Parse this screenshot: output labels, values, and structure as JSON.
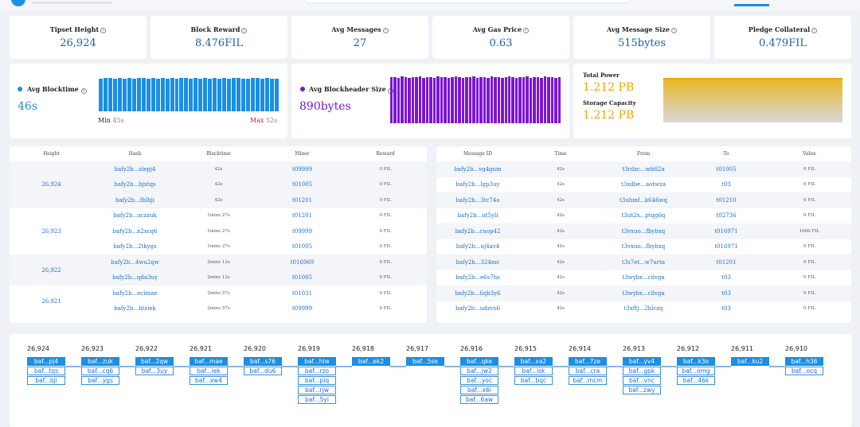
{
  "stats": [
    {
      "title": "Tipset Height",
      "value": "26,924"
    },
    {
      "title": "Block Reward",
      "value": "8.476FIL"
    },
    {
      "title": "Avg Messages",
      "value": "27"
    },
    {
      "title": "Avg Gas Price",
      "value": "0.63"
    },
    {
      "title": "Avg Message Size",
      "value": "515bytes"
    },
    {
      "title": "Pledge Collateral",
      "value": "0.479FIL"
    }
  ],
  "blocktime": {
    "title": "Avg Blocktime",
    "value": "46s",
    "min_label": "Min",
    "min_value": "45s",
    "max_label": "Max",
    "max_value": "52s",
    "color": "#1a8fe3",
    "levels": [
      0.86,
      0.88,
      0.87,
      0.86,
      0.88,
      0.85,
      0.87,
      0.86,
      0.88,
      0.87,
      0.86,
      0.87,
      0.85,
      0.88,
      0.86,
      0.87,
      0.86,
      0.88,
      0.87,
      0.86,
      0.88,
      0.86,
      0.87,
      0.85,
      0.88,
      0.86,
      0.87,
      0.86,
      0.88,
      0.87,
      0.86,
      0.85,
      0.87,
      0.88,
      0.86,
      0.87,
      0.86,
      0.85
    ]
  },
  "blockheader": {
    "title": "Avg Blockheader Size",
    "value": "890bytes",
    "color": "#7b16d4",
    "levels": [
      0.96,
      0.97,
      0.95,
      0.98,
      0.96,
      0.95,
      0.97,
      0.96,
      0.98,
      0.95,
      0.97,
      0.96,
      0.95,
      0.98,
      0.96,
      0.97,
      0.95,
      0.96,
      0.98,
      0.97,
      0.95,
      0.96,
      0.97,
      0.98,
      0.95,
      0.96,
      0.97,
      0.95,
      0.98,
      0.96,
      0.97,
      0.95,
      0.96,
      0.98,
      0.97,
      0.95,
      0.96,
      0.97,
      0.98,
      0.95,
      0.96,
      0.97,
      0.95,
      0.98,
      0.96,
      0.97,
      0.95,
      0.96
    ]
  },
  "power": {
    "total_label": "Total Power",
    "total_value": "1.212 PB",
    "storage_label": "Storage Capacity",
    "storage_value": "1.212 PB",
    "value_color": "#f0a800"
  },
  "blocks_table": {
    "headers": [
      "Height",
      "Hash",
      "Blocktime",
      "Miner",
      "Reward"
    ],
    "groups": [
      {
        "height": "26,924",
        "rows": [
          {
            "hash": "bafy2b...zlepj4",
            "time": "42s",
            "miner": "t09999",
            "reward": "0 FIL"
          },
          {
            "hash": "bafy2b...bjxtqs",
            "time": "42s",
            "miner": "t01005",
            "reward": "0 FIL"
          },
          {
            "hash": "bafy2b...fblbji",
            "time": "42s",
            "miner": "t01201",
            "reward": "0 FIL"
          }
        ]
      },
      {
        "height": "26,923",
        "rows": [
          {
            "hash": "bafy2b...zczzuk",
            "time": "1mins 27s",
            "miner": "t01201",
            "reward": "0 FIL"
          },
          {
            "hash": "bafy2b...x2xcq6",
            "time": "1mins 27s",
            "miner": "t09999",
            "reward": "0 FIL"
          },
          {
            "hash": "bafy2b...2tkygs",
            "time": "1mins 27s",
            "miner": "t01005",
            "reward": "0 FIL"
          }
        ]
      },
      {
        "height": "26,922",
        "rows": [
          {
            "hash": "bafy2b...4wu2qw",
            "time": "2mins 12s",
            "miner": "t016969",
            "reward": "0 FIL"
          },
          {
            "hash": "bafy2b...qda3uy",
            "time": "2mins 12s",
            "miner": "t01005",
            "reward": "0 FIL"
          }
        ]
      },
      {
        "height": "26,921",
        "rows": [
          {
            "hash": "bafy2b...ecimae",
            "time": "2mins 57s",
            "miner": "t01031",
            "reward": "0 FIL"
          },
          {
            "hash": "bafy2b...htziek",
            "time": "2mins 57s",
            "miner": "t09999",
            "reward": "0 FIL"
          }
        ]
      }
    ]
  },
  "messages_table": {
    "headers": [
      "Message ID",
      "Time",
      "From",
      "To",
      "Value"
    ],
    "rows": [
      {
        "id": "bafy2b...vg4gum",
        "time": "42s",
        "from": "t3rdzc...wbtl2a",
        "to": "t01005",
        "value": "0 FIL"
      },
      {
        "id": "bafy2b...lgp3uy",
        "time": "42s",
        "from": "t3xdbe...aotwza",
        "to": "t03",
        "value": "0 FIL"
      },
      {
        "id": "bafy2b...3tc74o",
        "time": "42s",
        "from": "t3uhmf...k646wq",
        "to": "t01210",
        "value": "0 FIL"
      },
      {
        "id": "bafy2b...ut5yli",
        "time": "42s",
        "from": "t3ut2x...ptqg6q",
        "to": "t02736",
        "value": "0 FIL"
      },
      {
        "id": "bafy2b...cuop42",
        "time": "42s",
        "from": "t3vxuo...fbybxq",
        "to": "t016971",
        "value": "1000 FIL"
      },
      {
        "id": "bafy2b...uj4av4",
        "time": "42s",
        "from": "t3vxuo...fbybxq",
        "to": "t016971",
        "value": "0 FIL"
      },
      {
        "id": "bafy2b...324mc",
        "time": "42s",
        "from": "t3s7et...w7urta",
        "to": "t01201",
        "value": "0 FIL"
      },
      {
        "id": "bafy2b...e6s7hs",
        "time": "42s",
        "from": "t3wybx...cilvga",
        "to": "t03",
        "value": "0 FIL"
      },
      {
        "id": "bafy2b...6qb3y6",
        "time": "42s",
        "from": "t3wybx...cilvga",
        "to": "t03",
        "value": "0 FIL"
      },
      {
        "id": "bafy2b...udzvo6",
        "time": "42s",
        "from": "t3xftj...2hlczq",
        "to": "t03",
        "value": "0 FIL"
      }
    ]
  },
  "chain": [
    {
      "height": "26,924",
      "blocks": [
        "baf...pj4",
        "baf...tqs",
        "baf...bji"
      ]
    },
    {
      "height": "26,923",
      "blocks": [
        "baf...zuk",
        "baf...cq6",
        "baf...ygs"
      ]
    },
    {
      "height": "26,922",
      "blocks": [
        "baf...2qw",
        "baf...3uy"
      ]
    },
    {
      "height": "26,921",
      "blocks": [
        "baf...mae",
        "baf...iek",
        "baf...xw4"
      ]
    },
    {
      "height": "26,920",
      "blocks": [
        "baf...s76",
        "baf...du6"
      ]
    },
    {
      "height": "26,919",
      "blocks": [
        "baf...hlw",
        "baf...rzo",
        "baf...piq",
        "baf...rjw",
        "baf...5yi"
      ]
    },
    {
      "height": "26,918",
      "blocks": [
        "baf...ek2"
      ]
    },
    {
      "height": "26,917",
      "blocks": [
        "baf...5se"
      ]
    },
    {
      "height": "26,916",
      "blocks": [
        "baf...qke",
        "baf...jw2",
        "baf...yoc",
        "baf...x6i",
        "baf...6aw"
      ]
    },
    {
      "height": "26,915",
      "blocks": [
        "baf...xa2",
        "baf...isk",
        "baf...bqc"
      ]
    },
    {
      "height": "26,914",
      "blocks": [
        "baf...7ze",
        "baf...cra",
        "baf...mcm"
      ]
    },
    {
      "height": "26,913",
      "blocks": [
        "baf...yv4",
        "baf...gpk",
        "baf...vnc",
        "baf...zwy"
      ]
    },
    {
      "height": "26,912",
      "blocks": [
        "baf...k3o",
        "baf...omg",
        "baf...46k"
      ]
    },
    {
      "height": "26,911",
      "blocks": [
        "baf...ku2"
      ]
    },
    {
      "height": "26,910",
      "blocks": [
        "baf...h36",
        "baf...ocq"
      ]
    }
  ]
}
